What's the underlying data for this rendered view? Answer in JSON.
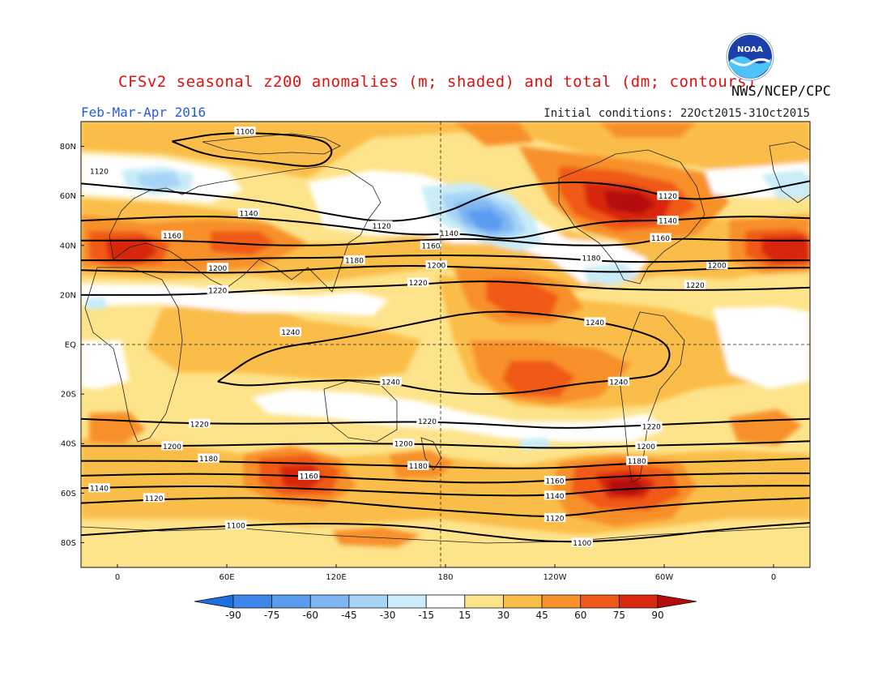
{
  "header": {
    "title": "CFSv2 seasonal z200 anomalies (m; shaded) and total (dm; contours)",
    "agency": "NWS/NCEP/CPC",
    "period": "Feb-Mar-Apr 2016",
    "initial_conditions": "Initial conditions: 22Oct2015-31Oct2015",
    "logo_text": "NOAA"
  },
  "axes": {
    "lat_labels": [
      {
        "text": "80N",
        "lat": 80
      },
      {
        "text": "60N",
        "lat": 60
      },
      {
        "text": "40N",
        "lat": 40
      },
      {
        "text": "20N",
        "lat": 20
      },
      {
        "text": "EQ",
        "lat": 0
      },
      {
        "text": "20S",
        "lat": -20
      },
      {
        "text": "40S",
        "lat": -40
      },
      {
        "text": "60S",
        "lat": -60
      },
      {
        "text": "80S",
        "lat": -80
      }
    ],
    "lon_labels": [
      {
        "text": "0",
        "lon": 0
      },
      {
        "text": "60E",
        "lon": 60
      },
      {
        "text": "120E",
        "lon": 120
      },
      {
        "text": "180",
        "lon": 180
      },
      {
        "text": "120W",
        "lon": 240
      },
      {
        "text": "60W",
        "lon": 300
      },
      {
        "text": "0",
        "lon": 360
      }
    ],
    "lon_range": [
      -20,
      380
    ],
    "lat_range": [
      -90,
      90
    ]
  },
  "colorbar": {
    "labels": [
      "-90",
      "-75",
      "-60",
      "-45",
      "-30",
      "-15",
      "15",
      "30",
      "45",
      "60",
      "75",
      "90"
    ],
    "colors": [
      "#1e6ee0",
      "#3f86ea",
      "#5a9cf0",
      "#7fb6f2",
      "#a6d4f6",
      "#c9ecf8",
      "#ffffff",
      "#fde38a",
      "#fbbd4a",
      "#f8902c",
      "#f05a18",
      "#d8280e",
      "#b40c0a"
    ]
  },
  "contours": [
    {
      "label": "1100",
      "points": [
        [
          -20,
          -77
        ],
        [
          40,
          -74
        ],
        [
          100,
          -72
        ],
        [
          160,
          -73
        ],
        [
          200,
          -77
        ],
        [
          240,
          -80
        ],
        [
          280,
          -79
        ],
        [
          340,
          -74
        ],
        [
          380,
          -72
        ]
      ],
      "label_at": [
        {
          "lon": 65,
          "lat": -73
        },
        {
          "lon": 255,
          "lat": -80
        }
      ]
    },
    {
      "label": "1120",
      "points": [
        [
          -20,
          -64
        ],
        [
          40,
          -62
        ],
        [
          100,
          -62
        ],
        [
          160,
          -66
        ],
        [
          200,
          -68
        ],
        [
          240,
          -70
        ],
        [
          280,
          -66
        ],
        [
          340,
          -63
        ],
        [
          380,
          -62
        ]
      ],
      "label_at": [
        {
          "lon": 20,
          "lat": -62
        },
        {
          "lon": 240,
          "lat": -70
        }
      ]
    },
    {
      "label": "1140",
      "points": [
        [
          -20,
          -58
        ],
        [
          40,
          -57
        ],
        [
          100,
          -58
        ],
        [
          160,
          -60
        ],
        [
          200,
          -61
        ],
        [
          240,
          -61
        ],
        [
          280,
          -58
        ],
        [
          340,
          -57
        ],
        [
          380,
          -57
        ]
      ],
      "label_at": [
        {
          "lon": -10,
          "lat": -58
        },
        {
          "lon": 240,
          "lat": -61
        }
      ]
    },
    {
      "label": "1160",
      "points": [
        [
          -20,
          -53
        ],
        [
          40,
          -52
        ],
        [
          100,
          -53
        ],
        [
          160,
          -55
        ],
        [
          200,
          -56
        ],
        [
          240,
          -55
        ],
        [
          280,
          -53
        ],
        [
          340,
          -52
        ],
        [
          380,
          -52
        ]
      ],
      "label_at": [
        {
          "lon": 105,
          "lat": -53
        },
        {
          "lon": 240,
          "lat": -55
        }
      ]
    },
    {
      "label": "1180",
      "points": [
        [
          -20,
          -47
        ],
        [
          40,
          -47
        ],
        [
          100,
          -48
        ],
        [
          160,
          -49
        ],
        [
          200,
          -50
        ],
        [
          240,
          -50
        ],
        [
          280,
          -48
        ],
        [
          340,
          -47
        ],
        [
          380,
          -46
        ]
      ],
      "label_at": [
        {
          "lon": 50,
          "lat": -46
        },
        {
          "lon": 165,
          "lat": -49
        },
        {
          "lon": 285,
          "lat": -47
        }
      ]
    },
    {
      "label": "1200",
      "points": [
        [
          -20,
          -41
        ],
        [
          40,
          -41
        ],
        [
          100,
          -40
        ],
        [
          160,
          -40
        ],
        [
          200,
          -41
        ],
        [
          240,
          -42
        ],
        [
          280,
          -41
        ],
        [
          340,
          -40
        ],
        [
          380,
          -39
        ]
      ],
      "label_at": [
        {
          "lon": 30,
          "lat": -41
        },
        {
          "lon": 157,
          "lat": -40
        },
        {
          "lon": 290,
          "lat": -41
        }
      ]
    },
    {
      "label": "1220",
      "points": [
        [
          -20,
          -30
        ],
        [
          40,
          -32
        ],
        [
          100,
          -32
        ],
        [
          160,
          -31
        ],
        [
          200,
          -32
        ],
        [
          240,
          -34
        ],
        [
          280,
          -33
        ],
        [
          340,
          -31
        ],
        [
          380,
          -30
        ]
      ],
      "label_at": [
        {
          "lon": 45,
          "lat": -32
        },
        {
          "lon": 170,
          "lat": -31
        },
        {
          "lon": 293,
          "lat": -33
        }
      ]
    },
    {
      "label": "1240",
      "points": [
        [
          55,
          -15
        ],
        [
          80,
          -2
        ],
        [
          120,
          2
        ],
        [
          160,
          8
        ],
        [
          200,
          14
        ],
        [
          240,
          12
        ],
        [
          280,
          7
        ],
        [
          305,
          0
        ],
        [
          300,
          -12
        ],
        [
          280,
          -14
        ],
        [
          250,
          -16
        ],
        [
          220,
          -20
        ],
        [
          180,
          -20
        ],
        [
          140,
          -14
        ],
        [
          100,
          -15
        ],
        [
          70,
          -17
        ],
        [
          55,
          -15
        ]
      ],
      "label_at": [
        {
          "lon": 95,
          "lat": 5
        },
        {
          "lon": 150,
          "lat": -15
        },
        {
          "lon": 262,
          "lat": 9
        },
        {
          "lon": 275,
          "lat": -15
        }
      ]
    },
    {
      "label": "1220",
      "points": [
        [
          -20,
          20
        ],
        [
          40,
          20
        ],
        [
          80,
          22
        ],
        [
          120,
          23
        ],
        [
          160,
          24
        ],
        [
          200,
          26
        ],
        [
          240,
          24
        ],
        [
          280,
          22
        ],
        [
          340,
          22
        ],
        [
          380,
          23
        ]
      ],
      "label_at": [
        {
          "lon": 55,
          "lat": 22
        },
        {
          "lon": 165,
          "lat": 25
        },
        {
          "lon": 317,
          "lat": 24
        }
      ]
    },
    {
      "label": "1200",
      "points": [
        [
          -20,
          30
        ],
        [
          40,
          29
        ],
        [
          80,
          29
        ],
        [
          120,
          31
        ],
        [
          160,
          32
        ],
        [
          200,
          31
        ],
        [
          240,
          30
        ],
        [
          280,
          29
        ],
        [
          340,
          31
        ],
        [
          380,
          31
        ]
      ],
      "label_at": [
        {
          "lon": 55,
          "lat": 31
        },
        {
          "lon": 175,
          "lat": 32
        },
        {
          "lon": 329,
          "lat": 32
        }
      ]
    },
    {
      "label": "1180",
      "points": [
        [
          -20,
          34
        ],
        [
          40,
          34
        ],
        [
          80,
          35
        ],
        [
          120,
          35
        ],
        [
          160,
          36
        ],
        [
          200,
          36
        ],
        [
          240,
          35
        ],
        [
          280,
          33
        ],
        [
          340,
          34
        ],
        [
          380,
          34
        ]
      ],
      "label_at": [
        {
          "lon": 130,
          "lat": 34
        },
        {
          "lon": 260,
          "lat": 35
        }
      ]
    },
    {
      "label": "1160",
      "points": [
        [
          -20,
          42
        ],
        [
          40,
          42
        ],
        [
          80,
          40
        ],
        [
          120,
          40
        ],
        [
          160,
          42
        ],
        [
          200,
          43
        ],
        [
          240,
          40
        ],
        [
          280,
          40
        ],
        [
          300,
          43
        ],
        [
          340,
          42
        ],
        [
          380,
          42
        ]
      ],
      "label_at": [
        {
          "lon": 30,
          "lat": 44
        },
        {
          "lon": 172,
          "lat": 40
        },
        {
          "lon": 298,
          "lat": 43
        }
      ]
    },
    {
      "label": "1140",
      "points": [
        [
          -20,
          50
        ],
        [
          40,
          52
        ],
        [
          80,
          51
        ],
        [
          120,
          48
        ],
        [
          160,
          44
        ],
        [
          190,
          45
        ],
        [
          215,
          42
        ],
        [
          240,
          46
        ],
        [
          270,
          50
        ],
        [
          300,
          50
        ],
        [
          340,
          52
        ],
        [
          380,
          51
        ]
      ],
      "label_at": [
        {
          "lon": 72,
          "lat": 53
        },
        {
          "lon": 182,
          "lat": 45
        },
        {
          "lon": 302,
          "lat": 50
        }
      ]
    },
    {
      "label": "1120",
      "points": [
        [
          -20,
          65
        ],
        [
          40,
          61
        ],
        [
          80,
          58
        ],
        [
          120,
          52
        ],
        [
          150,
          49
        ],
        [
          180,
          53
        ],
        [
          200,
          60
        ],
        [
          220,
          64
        ],
        [
          250,
          66
        ],
        [
          280,
          64
        ],
        [
          310,
          58
        ],
        [
          340,
          60
        ],
        [
          380,
          66
        ]
      ],
      "label_at": [
        {
          "lon": -10,
          "lat": 70
        },
        {
          "lon": 145,
          "lat": 48
        },
        {
          "lon": 302,
          "lat": 60
        }
      ]
    },
    {
      "label": "1100",
      "points": [
        [
          30,
          82
        ],
        [
          60,
          86
        ],
        [
          110,
          84
        ],
        [
          120,
          78
        ],
        [
          110,
          71
        ],
        [
          80,
          74
        ],
        [
          50,
          76
        ],
        [
          30,
          82
        ]
      ],
      "label_at": [
        {
          "lon": 70,
          "lat": 86
        }
      ]
    }
  ]
}
